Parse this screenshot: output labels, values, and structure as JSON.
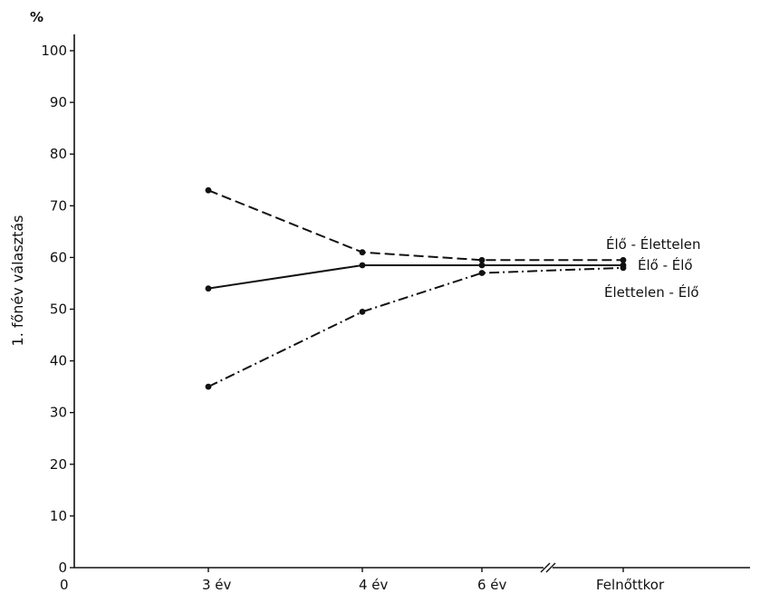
{
  "chart_data": {
    "type": "line",
    "unit_label": "%",
    "ylabel": "1. főnév választás",
    "xlabel": "",
    "ylim": [
      0,
      100
    ],
    "y_ticks": [
      0,
      10,
      20,
      30,
      40,
      50,
      60,
      70,
      80,
      90,
      100
    ],
    "x_origin_label": "0",
    "categories": [
      "3 év",
      "4 év",
      "6 év",
      "Felnőttkor"
    ],
    "axis_break_between": [
      "6 év",
      "Felnőttkor"
    ],
    "grid": false,
    "series": [
      {
        "name": "Élő - Élettelen",
        "style": "dashed",
        "values": [
          73,
          61,
          59.5,
          59.5
        ]
      },
      {
        "name": "Élő - Élő",
        "style": "solid",
        "values": [
          54,
          58.5,
          58.5,
          58.5
        ]
      },
      {
        "name": "Élettelen - Élő",
        "style": "dashdot",
        "values": [
          35,
          49.5,
          57,
          58
        ]
      }
    ]
  }
}
